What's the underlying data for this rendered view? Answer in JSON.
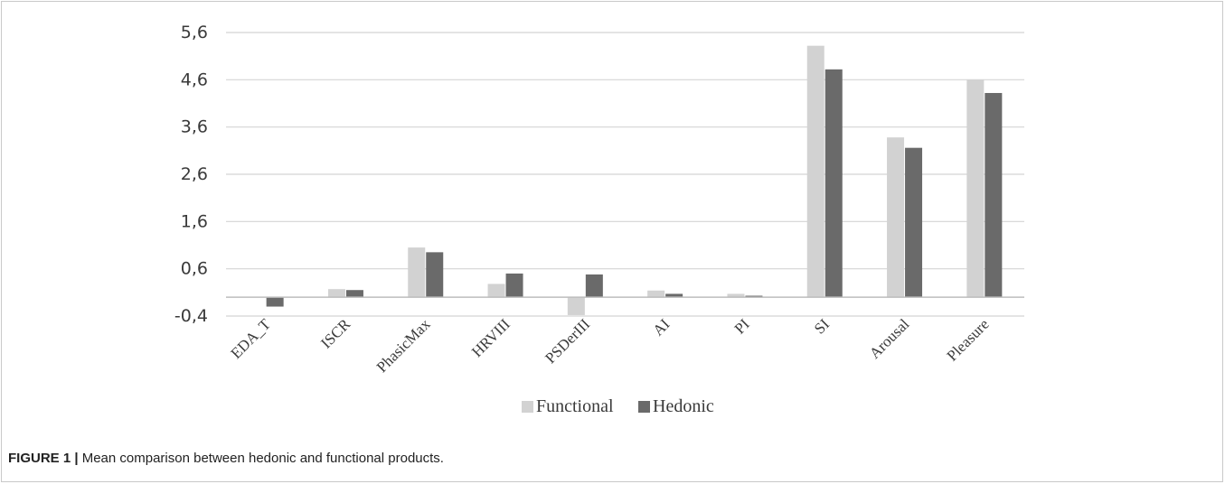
{
  "caption": {
    "label": "FIGURE 1 |",
    "text": "Mean comparison between hedonic and functional products."
  },
  "colors": {
    "functional": "#d2d2d2",
    "hedonic": "#6a6a6a",
    "grid": "#d4d4d4",
    "axis": "#bdbdbd"
  },
  "chart_data": {
    "type": "bar",
    "title": "",
    "xlabel": "",
    "ylabel": "",
    "ylim": [
      -0.4,
      5.6
    ],
    "yticks": [
      "5,6",
      "4,6",
      "3,6",
      "2,6",
      "1,6",
      "0,6",
      "-0,4"
    ],
    "ytick_values": [
      5.6,
      4.6,
      3.6,
      2.6,
      1.6,
      0.6,
      -0.4
    ],
    "categories": [
      "EDA_T",
      "ISCR",
      "PhasicMax",
      "HRVIII",
      "PSDerIII",
      "AI",
      "PI",
      "SI",
      "Arousal",
      "Pleasure"
    ],
    "series": [
      {
        "name": "Functional",
        "values": [
          0.0,
          0.17,
          1.05,
          0.28,
          -0.38,
          0.14,
          0.07,
          5.32,
          3.38,
          4.6
        ]
      },
      {
        "name": "Hedonic",
        "values": [
          -0.2,
          0.15,
          0.95,
          0.5,
          0.48,
          0.07,
          0.03,
          4.82,
          3.16,
          4.32
        ]
      }
    ],
    "legend_position": "bottom-center",
    "grid": true
  }
}
